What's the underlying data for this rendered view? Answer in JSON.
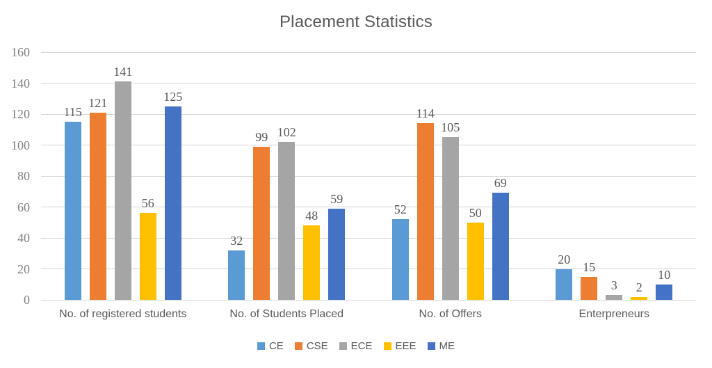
{
  "chart_data": {
    "type": "bar",
    "title": "Placement Statistics",
    "categories": [
      "No. of registered students",
      "No. of Students Placed",
      "No. of Offers",
      "Enterpreneurs"
    ],
    "series": [
      {
        "name": "CE",
        "color": "#5B9BD5",
        "values": [
          115,
          32,
          52,
          20
        ]
      },
      {
        "name": "CSE",
        "color": "#ED7D31",
        "values": [
          121,
          99,
          114,
          15
        ]
      },
      {
        "name": "ECE",
        "color": "#A5A5A5",
        "values": [
          141,
          102,
          105,
          3
        ]
      },
      {
        "name": "EEE",
        "color": "#FFC000",
        "values": [
          56,
          48,
          50,
          2
        ]
      },
      {
        "name": "ME",
        "color": "#4472C4",
        "values": [
          125,
          59,
          69,
          10
        ]
      }
    ],
    "y_axis": {
      "min": 0,
      "max": 160,
      "step": 20
    },
    "grid": true,
    "data_labels": true,
    "legend_position": "bottom",
    "xlabel": "",
    "ylabel": ""
  },
  "colors": {
    "gridline": "#D6D6D6",
    "title_text": "#595959",
    "tick_text": "#808080",
    "data_label_text": "#595959",
    "category_text": "#595959",
    "legend_text": "#595959",
    "background": "#FFFFFF"
  }
}
